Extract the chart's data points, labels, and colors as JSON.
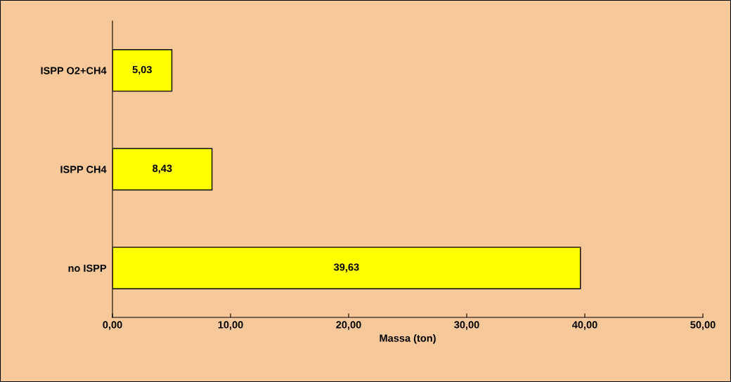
{
  "chart_data": {
    "type": "bar",
    "orientation": "horizontal",
    "xlabel": "Massa (ton)",
    "categories": [
      "ISPP O2+CH4",
      "ISPP CH4",
      "no ISPP"
    ],
    "values": [
      5.03,
      8.43,
      39.63
    ],
    "color": "#ffff00",
    "value_labels": [
      "5,03",
      "8,43",
      "39,63"
    ],
    "xlim": [
      0,
      50
    ],
    "xticks": [
      {
        "value": 0,
        "label": "0,00"
      },
      {
        "value": 10,
        "label": "10,00"
      },
      {
        "value": 20,
        "label": "20,00"
      },
      {
        "value": 30,
        "label": "30,00"
      },
      {
        "value": 40,
        "label": "40,00"
      },
      {
        "value": 50,
        "label": "50,00"
      }
    ],
    "grid": false,
    "legend": false
  }
}
